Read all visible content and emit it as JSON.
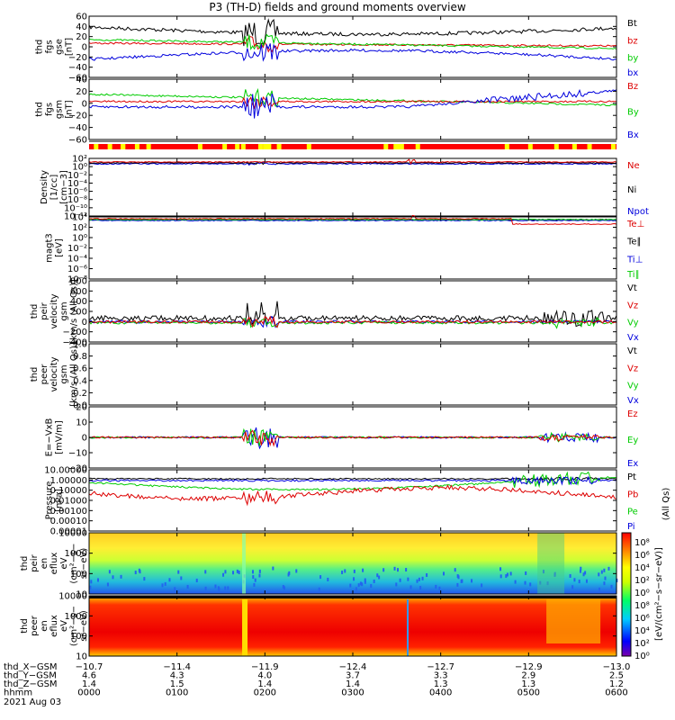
{
  "title": "P3 (TH-D) fields and ground moments overview",
  "colors": {
    "black": "#000000",
    "red": "#dd0000",
    "green": "#00cc00",
    "blue": "#0000dd"
  },
  "panels": [
    {
      "id": "fgs_gse",
      "ylabel": [
        "thd",
        "fgs",
        "gse",
        "[nT]"
      ],
      "ylim": [
        -60,
        60
      ],
      "ticks": [
        "60",
        "40",
        "20",
        "0",
        "−20",
        "−40",
        "−60"
      ],
      "legend": [
        {
          "label": "Bt",
          "color": "black"
        },
        {
          "label": "bz",
          "color": "red"
        },
        {
          "label": "by",
          "color": "green"
        },
        {
          "label": "bx",
          "color": "blue"
        }
      ]
    },
    {
      "id": "fgs_gsm",
      "ylabel": [
        "thd",
        "fgs",
        "gsm",
        "[nT]"
      ],
      "ylim": [
        -60,
        40
      ],
      "ticks": [
        "40",
        "20",
        "0",
        "−20",
        "−40",
        "−60"
      ],
      "legend": [
        {
          "label": "Bz",
          "color": "red"
        },
        {
          "label": "By",
          "color": "green"
        },
        {
          "label": "Bx",
          "color": "blue"
        }
      ]
    },
    {
      "id": "density",
      "ylabel": [
        "Density",
        "[1/cc]",
        "[cm−3]"
      ],
      "ticks": [
        "10²",
        "10⁰",
        "10⁻²",
        "10⁻⁴",
        "10⁻⁶",
        "10⁻⁸",
        "10⁻¹⁰",
        "10⁻¹²"
      ],
      "legend": [
        {
          "label": "Ne",
          "color": "red"
        },
        {
          "label": "Ni",
          "color": "black"
        },
        {
          "label": "Npot",
          "color": "blue"
        }
      ]
    },
    {
      "id": "temp",
      "ylabel": [
        "magt3",
        "[eV]"
      ],
      "ticks": [
        "10⁴",
        "10²",
        "10⁰",
        "10⁻²",
        "10⁻⁴",
        "10⁻⁶",
        "10⁻⁸"
      ],
      "legend": [
        {
          "label": "Te⊥",
          "color": "red"
        },
        {
          "label": "Te∥",
          "color": "black"
        },
        {
          "label": "Ti⊥",
          "color": "blue"
        },
        {
          "label": "Ti∥",
          "color": "green"
        }
      ]
    },
    {
      "id": "peir_vel",
      "ylabel": [
        "thd",
        "peir",
        "velocity",
        "gsm",
        "[km/s (All Qs)]"
      ],
      "ylim": [
        -400,
        800
      ],
      "ticks": [
        "800",
        "600",
        "400",
        "200",
        "0",
        "−200",
        "−400"
      ],
      "legend": [
        {
          "label": "Vt",
          "color": "black"
        },
        {
          "label": "Vz",
          "color": "red"
        },
        {
          "label": "Vy",
          "color": "green"
        },
        {
          "label": "Vx",
          "color": "blue"
        }
      ]
    },
    {
      "id": "peer_vel",
      "ylabel": [
        "thd",
        "peer",
        "velocity",
        "gsm",
        "[km/s (All Qs)]"
      ],
      "ylim": [
        0,
        1
      ],
      "ticks": [
        "1.0",
        "0.8",
        "0.6",
        "0.4",
        "0.2",
        "0.0"
      ],
      "legend": [
        {
          "label": "Vt",
          "color": "black"
        },
        {
          "label": "Vz",
          "color": "red"
        },
        {
          "label": "Vy",
          "color": "green"
        },
        {
          "label": "Vx",
          "color": "blue"
        }
      ]
    },
    {
      "id": "efield",
      "ylabel": [
        "E=−VxB",
        "[mV/m]"
      ],
      "ylim": [
        -20,
        20
      ],
      "ticks": [
        "20",
        "10",
        "0",
        "−10",
        "−20"
      ],
      "legend": [
        {
          "label": "Ez",
          "color": "red"
        },
        {
          "label": "Ey",
          "color": "green"
        },
        {
          "label": "Ex",
          "color": "blue"
        }
      ]
    },
    {
      "id": "pressure",
      "ylabel": [
        "Pressure",
        "[nPa]"
      ],
      "ticks": [
        "10.00000",
        "1.00000",
        "0.10000",
        "0.01000",
        "0.00100",
        "0.00010",
        "0.00001"
      ],
      "legend": [
        {
          "label": "Pt",
          "color": "black"
        },
        {
          "label": "Pb",
          "color": "red"
        },
        {
          "label": "Pe",
          "color": "green"
        },
        {
          "label": "Pi",
          "color": "blue"
        }
      ]
    },
    {
      "id": "peir_spec",
      "ylabel": [
        "thd",
        "peir",
        "en",
        "eflux",
        "eV",
        "(cm²−s−",
        "sr−eV)"
      ],
      "ticks": [
        "10000",
        "1000",
        "100",
        "10"
      ]
    },
    {
      "id": "peer_spec",
      "ylabel": [
        "thd",
        "peer",
        "en",
        "eflux",
        "eV",
        "(cm²−s−",
        "sr−eV)"
      ],
      "ticks": [
        "10000",
        "1000",
        "100",
        "10"
      ]
    }
  ],
  "colorbar": {
    "label": "[eV/(cm²−s−sr−eV)]",
    "sub": "(All Qs)",
    "ticks_top": [
      "10⁸",
      "10⁶",
      "10⁴",
      "10²",
      "10⁰"
    ],
    "ticks_bottom": [
      "10⁸",
      "10⁶",
      "10⁴",
      "10²",
      "10⁰"
    ]
  },
  "x_axis": {
    "rows": [
      {
        "name": "thd_X−GSM",
        "values": [
          "−10.7",
          "−11.4",
          "−11.9",
          "−12.4",
          "−12.7",
          "−12.9",
          "−13.0"
        ]
      },
      {
        "name": "thd_Y−GSM",
        "values": [
          "4.6",
          "4.3",
          "4.0",
          "3.7",
          "3.3",
          "2.9",
          "2.5"
        ]
      },
      {
        "name": "thd_Z−GSM",
        "values": [
          "1.4",
          "1.5",
          "1.4",
          "1.4",
          "1.3",
          "1.3",
          "1.2"
        ]
      },
      {
        "name": "hhmm",
        "values": [
          "0000",
          "0100",
          "0200",
          "0300",
          "0400",
          "0500",
          "0600"
        ]
      }
    ],
    "date": "2021 Aug 03"
  }
}
